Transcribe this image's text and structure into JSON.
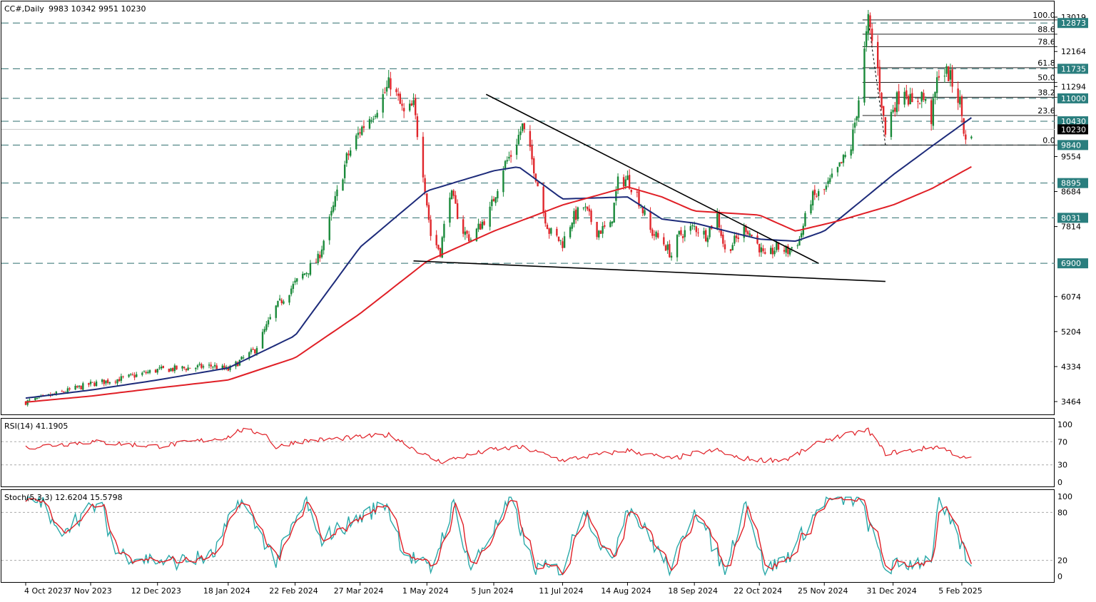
{
  "header": {
    "symbol": "CC#,Daily",
    "ohlc": "9983 10342 9951 10230"
  },
  "colors": {
    "bull": "#1a8a3a",
    "bear": "#e0262b",
    "ma_fast": "#1d2b7a",
    "ma_slow": "#e01f26",
    "level_badge": "#2a7e7e",
    "current_badge": "#000000",
    "stoch_main": "#2aa9a9",
    "stoch_signal": "#e01f26",
    "rsi_line": "#e01f26"
  },
  "chart_data": [
    {
      "type": "candlestick",
      "title": "CC#,Daily",
      "ylim": [
        3200,
        13300
      ],
      "price_axis_ticks": [
        "13019",
        "12164",
        "11294",
        "9554",
        "8684",
        "7814",
        "6074",
        "5204",
        "4334",
        "3464"
      ],
      "x_labels": [
        "4 Oct 2023",
        "7 Nov 2023",
        "12 Dec 2023",
        "18 Jan 2024",
        "22 Feb 2024",
        "27 Mar 2024",
        "1 May 2024",
        "5 Jun 2024",
        "11 Jul 2024",
        "14 Aug 2024",
        "18 Sep 2024",
        "22 Oct 2024",
        "25 Nov 2024",
        "31 Dec 2024",
        "5 Feb 2025"
      ],
      "x_dates": [
        "2023-10-04",
        "2023-11-07",
        "2023-12-12",
        "2024-01-18",
        "2024-02-22",
        "2024-03-27",
        "2024-05-01",
        "2024-06-05",
        "2024-07-11",
        "2024-08-14",
        "2024-09-18",
        "2024-10-22",
        "2024-11-25",
        "2024-12-31",
        "2025-02-05"
      ],
      "close_path": [
        [
          "2023-10-04",
          3450
        ],
        [
          "2023-10-20",
          3650
        ],
        [
          "2023-11-07",
          3900
        ],
        [
          "2023-11-25",
          4050
        ],
        [
          "2023-12-12",
          4250
        ],
        [
          "2023-12-28",
          4300
        ],
        [
          "2024-01-10",
          4350
        ],
        [
          "2024-01-18",
          4250
        ],
        [
          "2024-02-01",
          4750
        ],
        [
          "2024-02-12",
          5800
        ],
        [
          "2024-02-22",
          6400
        ],
        [
          "2024-03-05",
          7000
        ],
        [
          "2024-03-12",
          8100
        ],
        [
          "2024-03-20",
          9500
        ],
        [
          "2024-03-27",
          10200
        ],
        [
          "2024-04-05",
          10800
        ],
        [
          "2024-04-12",
          11400
        ],
        [
          "2024-04-19",
          10600
        ],
        [
          "2024-04-24",
          10800
        ],
        [
          "2024-04-29",
          9200
        ],
        [
          "2024-05-03",
          7600
        ],
        [
          "2024-05-08",
          7200
        ],
        [
          "2024-05-13",
          8700
        ],
        [
          "2024-05-20",
          7700
        ],
        [
          "2024-05-24",
          7500
        ],
        [
          "2024-06-03",
          8200
        ],
        [
          "2024-06-10",
          9300
        ],
        [
          "2024-06-14",
          9600
        ],
        [
          "2024-06-20",
          10300
        ],
        [
          "2024-06-26",
          9300
        ],
        [
          "2024-07-01",
          8200
        ],
        [
          "2024-07-04",
          7700
        ],
        [
          "2024-07-11",
          7400
        ],
        [
          "2024-07-16",
          8000
        ],
        [
          "2024-07-22",
          8300
        ],
        [
          "2024-07-29",
          7700
        ],
        [
          "2024-08-05",
          7800
        ],
        [
          "2024-08-09",
          8900
        ],
        [
          "2024-08-14",
          9000
        ],
        [
          "2024-08-19",
          8600
        ],
        [
          "2024-08-26",
          7700
        ],
        [
          "2024-09-02",
          7400
        ],
        [
          "2024-09-06",
          7100
        ],
        [
          "2024-09-10",
          7600
        ],
        [
          "2024-09-18",
          7800
        ],
        [
          "2024-09-24",
          7600
        ],
        [
          "2024-09-30",
          8100
        ],
        [
          "2024-10-04",
          7200
        ],
        [
          "2024-10-10",
          7500
        ],
        [
          "2024-10-15",
          7800
        ],
        [
          "2024-10-22",
          7300
        ],
        [
          "2024-10-25",
          7000
        ],
        [
          "2024-10-31",
          7300
        ],
        [
          "2024-11-06",
          7200
        ],
        [
          "2024-11-12",
          7500
        ],
        [
          "2024-11-18",
          8500
        ],
        [
          "2024-11-25",
          8700
        ],
        [
          "2024-12-02",
          9200
        ],
        [
          "2024-12-09",
          9800
        ],
        [
          "2024-12-13",
          11000
        ],
        [
          "2024-12-18",
          12900
        ],
        [
          "2024-12-23",
          11700
        ],
        [
          "2024-12-27",
          10100
        ],
        [
          "2024-12-31",
          10800
        ],
        [
          "2025-01-06",
          11300
        ],
        [
          "2025-01-10",
          10800
        ],
        [
          "2025-01-15",
          11100
        ],
        [
          "2025-01-20",
          10500
        ],
        [
          "2025-01-24",
          11700
        ],
        [
          "2025-01-29",
          11600
        ],
        [
          "2025-02-04",
          10900
        ],
        [
          "2025-02-07",
          9900
        ],
        [
          "2025-02-10",
          10230
        ]
      ],
      "series": [
        {
          "name": "MA fast",
          "points": [
            [
              "2023-10-04",
              3550
            ],
            [
              "2023-11-07",
              3750
            ],
            [
              "2023-12-12",
              4000
            ],
            [
              "2024-01-18",
              4300
            ],
            [
              "2024-02-22",
              5100
            ],
            [
              "2024-03-27",
              7300
            ],
            [
              "2024-05-01",
              8700
            ],
            [
              "2024-06-05",
              9200
            ],
            [
              "2024-06-18",
              9300
            ],
            [
              "2024-07-11",
              8500
            ],
            [
              "2024-08-14",
              8550
            ],
            [
              "2024-09-01",
              8000
            ],
            [
              "2024-09-18",
              7900
            ],
            [
              "2024-10-22",
              7500
            ],
            [
              "2024-11-10",
              7450
            ],
            [
              "2024-11-25",
              7700
            ],
            [
              "2024-12-31",
              9100
            ],
            [
              "2025-01-20",
              9800
            ],
            [
              "2025-02-10",
              10520
            ]
          ]
        },
        {
          "name": "MA slow",
          "points": [
            [
              "2023-10-04",
              3450
            ],
            [
              "2023-11-07",
              3600
            ],
            [
              "2023-12-12",
              3800
            ],
            [
              "2024-01-18",
              4000
            ],
            [
              "2024-02-22",
              4550
            ],
            [
              "2024-03-27",
              5650
            ],
            [
              "2024-05-01",
              6950
            ],
            [
              "2024-06-05",
              7700
            ],
            [
              "2024-07-11",
              8350
            ],
            [
              "2024-08-14",
              8800
            ],
            [
              "2024-09-01",
              8550
            ],
            [
              "2024-09-18",
              8200
            ],
            [
              "2024-10-22",
              8100
            ],
            [
              "2024-11-10",
              7700
            ],
            [
              "2024-12-02",
              7950
            ],
            [
              "2024-12-31",
              8350
            ],
            [
              "2025-01-20",
              8750
            ],
            [
              "2025-02-10",
              9300
            ]
          ]
        }
      ],
      "horizontal_levels": [
        12873,
        11735,
        11000,
        10430,
        9840,
        8895,
        8031,
        6900
      ],
      "level_labels": [
        "12873",
        "11735",
        "11000",
        "10430",
        "9840",
        "8895",
        "8031",
        "6900"
      ],
      "current_price": 10230,
      "current_price_label": "10230",
      "fibonacci": {
        "high": 12950,
        "low": 9840,
        "start_date": "2024-12-18",
        "end_date": "2025-02-12",
        "levels": [
          {
            "ratio": 100.0,
            "label": "100.0"
          },
          {
            "ratio": 88.6,
            "label": "88.6"
          },
          {
            "ratio": 78.6,
            "label": "78.6"
          },
          {
            "ratio": 61.8,
            "label": "61.8"
          },
          {
            "ratio": 50.0,
            "label": "50.0"
          },
          {
            "ratio": 38.2,
            "label": "38.2"
          },
          {
            "ratio": 23.6,
            "label": "23.6"
          },
          {
            "ratio": 0.0,
            "label": "0.0"
          }
        ]
      },
      "trendlines": [
        {
          "from": [
            "2024-06-01",
            11100
          ],
          "to": [
            "2024-11-22",
            6900
          ]
        },
        {
          "from": [
            "2024-04-24",
            6960
          ],
          "to": [
            "2024-12-27",
            6450
          ]
        }
      ]
    },
    {
      "type": "line",
      "title": "RSI(14) 41.1905",
      "ylim": [
        0,
        100
      ],
      "ticks": [
        "100",
        "70",
        "30",
        "0"
      ],
      "levels": [
        70,
        30
      ],
      "series": [
        {
          "name": "RSI(14)",
          "points": [
            [
              "2023-10-04",
              60
            ],
            [
              "2023-11-07",
              70
            ],
            [
              "2023-12-12",
              62
            ],
            [
              "2024-01-18",
              78
            ],
            [
              "2024-01-24",
              90
            ],
            [
              "2024-02-06",
              85
            ],
            [
              "2024-02-12",
              60
            ],
            [
              "2024-02-22",
              70
            ],
            [
              "2024-03-27",
              78
            ],
            [
              "2024-04-12",
              82
            ],
            [
              "2024-05-01",
              45
            ],
            [
              "2024-05-08",
              35
            ],
            [
              "2024-06-05",
              57
            ],
            [
              "2024-06-20",
              60
            ],
            [
              "2024-07-11",
              38
            ],
            [
              "2024-08-14",
              55
            ],
            [
              "2024-09-06",
              40
            ],
            [
              "2024-09-18",
              50
            ],
            [
              "2024-09-30",
              55
            ],
            [
              "2024-10-10",
              42
            ],
            [
              "2024-10-25",
              38
            ],
            [
              "2024-11-06",
              40
            ],
            [
              "2024-11-25",
              73
            ],
            [
              "2024-12-18",
              90
            ],
            [
              "2024-12-27",
              50
            ],
            [
              "2025-01-10",
              55
            ],
            [
              "2025-01-24",
              62
            ],
            [
              "2025-02-07",
              40
            ],
            [
              "2025-02-10",
              41.19
            ]
          ]
        }
      ]
    },
    {
      "type": "line",
      "title": "Stoch(5,3,3) 12.6204 15.5798",
      "ylim": [
        0,
        100
      ],
      "ticks": [
        "100",
        "80",
        "20",
        "0"
      ],
      "levels": [
        80,
        20
      ],
      "series": [
        {
          "name": "Stoch main",
          "last": 12.6204
        },
        {
          "name": "Stoch signal",
          "last": 15.5798
        }
      ],
      "cycle_days": 18,
      "lows": [
        [
          "2023-10-20",
          55
        ],
        [
          "2023-11-20",
          30
        ],
        [
          "2023-12-05",
          22
        ],
        [
          "2023-12-20",
          18
        ],
        [
          "2024-01-10",
          25
        ],
        [
          "2024-02-12",
          20
        ],
        [
          "2024-03-05",
          45
        ],
        [
          "2024-04-19",
          30
        ],
        [
          "2024-05-03",
          8
        ],
        [
          "2024-05-24",
          10
        ],
        [
          "2024-06-26",
          10
        ],
        [
          "2024-07-11",
          8
        ],
        [
          "2024-08-05",
          15
        ],
        [
          "2024-09-06",
          6
        ],
        [
          "2024-10-04",
          6
        ],
        [
          "2024-10-25",
          6
        ],
        [
          "2024-11-06",
          25
        ],
        [
          "2024-12-27",
          10
        ],
        [
          "2025-01-20",
          22
        ],
        [
          "2025-02-10",
          12.6
        ]
      ],
      "highs": [
        [
          "2023-10-12",
          95
        ],
        [
          "2023-11-12",
          92
        ],
        [
          "2024-01-24",
          97
        ],
        [
          "2024-02-28",
          95
        ],
        [
          "2024-04-10",
          92
        ],
        [
          "2024-05-15",
          90
        ],
        [
          "2024-06-14",
          95
        ],
        [
          "2024-07-22",
          88
        ],
        [
          "2024-08-14",
          90
        ],
        [
          "2024-09-18",
          88
        ],
        [
          "2024-10-15",
          95
        ],
        [
          "2024-11-25",
          95
        ],
        [
          "2024-12-13",
          97
        ],
        [
          "2025-01-24",
          95
        ]
      ]
    }
  ]
}
